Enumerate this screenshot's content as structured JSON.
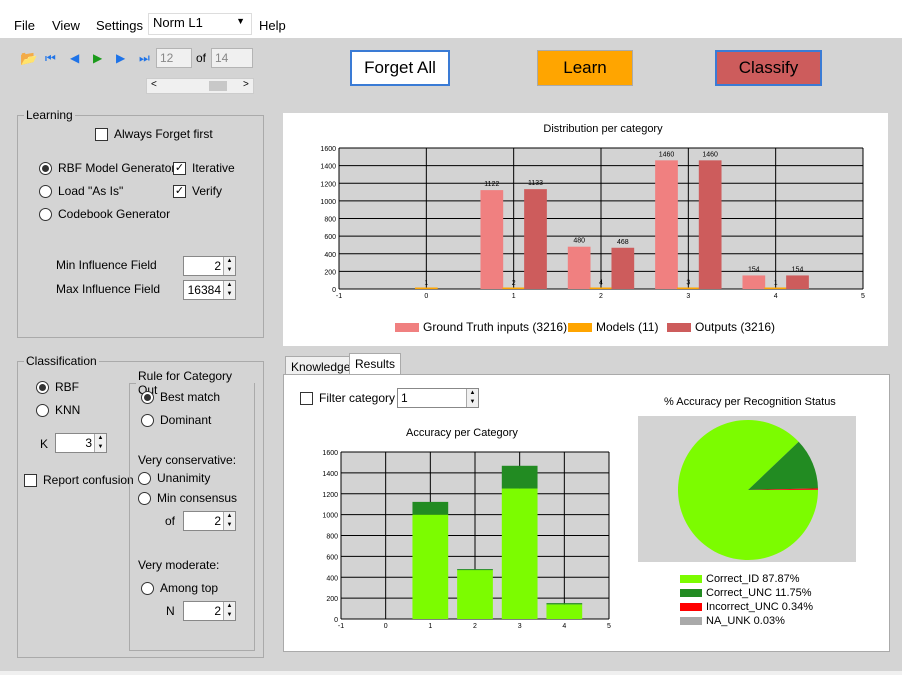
{
  "menu": {
    "file": "File",
    "view": "View",
    "settings": "Settings",
    "norm": "Norm L1",
    "help": "Help"
  },
  "nav": {
    "current": "12",
    "of_label": "of",
    "total": "14"
  },
  "buttons": {
    "forget_all": "Forget All",
    "learn": "Learn",
    "classify": "Classify"
  },
  "colors": {
    "learn": "#ffa500",
    "classify": "#cd5c5c",
    "ground_truth": "#f08080",
    "models": "#ffa500",
    "outputs": "#cd5c5c",
    "correct_id": "#7cfc00",
    "correct_unc": "#228b22",
    "incorrect_unc": "#ff0000",
    "na_unk": "#a9a9a9"
  },
  "learning": {
    "legend": "Learning",
    "always_forget": "Always Forget first",
    "rbf": "RBF Model Generator",
    "load": "Load \"As Is\"",
    "codebook": "Codebook Generator",
    "iterative": "Iterative",
    "verify": "Verify",
    "min_label": "Min Influence Field",
    "min_value": "2",
    "max_label": "Max Influence Field",
    "max_value": "16384"
  },
  "classification": {
    "legend": "Classification",
    "rbf": "RBF",
    "knn": "KNN",
    "k_label": "K",
    "k_value": "3",
    "report": "Report confusion",
    "rule_legend": "Rule for Category Out",
    "best_match": "Best match",
    "dominant": "Dominant",
    "very_conservative": "Very conservative:",
    "unanimity": "Unanimity",
    "min_consensus": "Min consensus",
    "of_label": "of",
    "of_value": "2",
    "very_moderate": "Very moderate:",
    "among_top": "Among top",
    "n_label": "N",
    "n_value": "2"
  },
  "tabs": {
    "knowledge": "Knowledge",
    "results": "Results"
  },
  "filter": {
    "label": "Filter category",
    "value": "1"
  },
  "chart_data": [
    {
      "type": "bar",
      "title": "Distribution per category",
      "xlim": [
        -1,
        5
      ],
      "ylim": [
        0,
        1600
      ],
      "xticks": [
        "-1",
        "0",
        "1",
        "2",
        "3",
        "4",
        "5"
      ],
      "yticks": [
        "0",
        "200",
        "400",
        "600",
        "800",
        "1000",
        "1200",
        "1400",
        "1600"
      ],
      "categories": [
        0,
        1,
        2,
        3,
        4
      ],
      "series": [
        {
          "name": "Ground Truth inputs (3216)",
          "values": [
            0,
            1122,
            480,
            1460,
            154
          ],
          "labels": [
            "",
            "1122",
            "480",
            "1460",
            "154"
          ]
        },
        {
          "name": "Models (11)",
          "values": [
            1,
            2,
            4,
            3,
            1
          ],
          "labels": [
            "1",
            "2",
            "4",
            "3",
            "1"
          ]
        },
        {
          "name": "Outputs (3216)",
          "values": [
            0,
            1133,
            468,
            1460,
            154
          ],
          "labels": [
            "",
            "1133",
            "468",
            "1460",
            "154"
          ]
        }
      ]
    },
    {
      "type": "bar",
      "stacked": true,
      "title": "Accuracy per Category",
      "xlim": [
        -1,
        5
      ],
      "ylim": [
        0,
        1600
      ],
      "xticks": [
        "-1",
        "0",
        "1",
        "2",
        "3",
        "4",
        "5"
      ],
      "yticks": [
        "0",
        "200",
        "400",
        "600",
        "800",
        "1000",
        "1200",
        "1400",
        "1600"
      ],
      "categories": [
        1,
        2,
        3,
        4
      ],
      "series": [
        {
          "name": "Correct_ID",
          "values": [
            1000,
            470,
            1250,
            140
          ]
        },
        {
          "name": "Correct_UNC",
          "values": [
            122,
            8,
            218,
            12
          ]
        }
      ]
    },
    {
      "type": "pie",
      "title": "% Accuracy per Recognition Status",
      "slices": [
        {
          "name": "Correct_ID 87.87%",
          "value": 87.87
        },
        {
          "name": "Correct_UNC 11.75%",
          "value": 11.75
        },
        {
          "name": "Incorrect_UNC 0.34%",
          "value": 0.34
        },
        {
          "name": "NA_UNK 0.03%",
          "value": 0.03
        }
      ]
    }
  ]
}
